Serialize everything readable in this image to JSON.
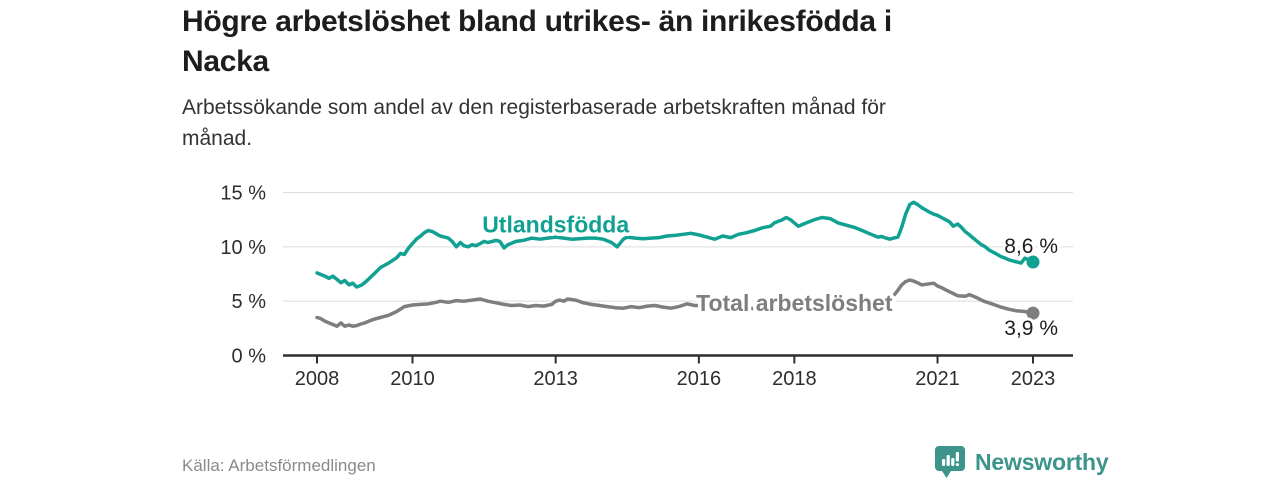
{
  "header": {
    "title_line1": "Högre arbetslöshet bland utrikes- än inrikesfödda i",
    "title_line2": "Nacka",
    "subtitle_line1": "Arbetssökande som andel av den registerbaserade arbetskraften månad för",
    "subtitle_line2": "månad."
  },
  "footer": {
    "source": "Källa: Arbetsförmedlingen",
    "brand_name": "Newsworthy",
    "brand_icon": "speech-bubble-bar-chart-icon"
  },
  "colors": {
    "foreign_born_line": "#11a192",
    "total_line": "#7e7e7e",
    "grid": "#dcdcdc",
    "axis": "#2e2e2e",
    "axis_text": "#2e2e2e",
    "value_label_text": "#1d1d1d",
    "title_text": "#1d1d1d",
    "subtitle_text": "#333333",
    "source_text": "#8a8a8a",
    "brand_teal": "#3c948b"
  },
  "chart_data": {
    "type": "line",
    "title": "Högre arbetslöshet bland utrikes- än inrikesfödda i Nacka",
    "subtitle": "Arbetssökande som andel av den registerbaserade arbetskraften månad för månad.",
    "unit": "%",
    "ylim": [
      0,
      15
    ],
    "x_range": [
      2008,
      2023
    ],
    "grid": "horizontal",
    "legend_position": "inline-labels",
    "y_ticks": [
      {
        "value": 0,
        "label": "0 %"
      },
      {
        "value": 5,
        "label": "5 %"
      },
      {
        "value": 10,
        "label": "10 %"
      },
      {
        "value": 15,
        "label": "15 %"
      }
    ],
    "x_ticks": [
      {
        "value": 2008,
        "label": "2008"
      },
      {
        "value": 2010,
        "label": "2010"
      },
      {
        "value": 2013,
        "label": "2013"
      },
      {
        "value": 2016,
        "label": "2016"
      },
      {
        "value": 2018,
        "label": "2018"
      },
      {
        "value": 2021,
        "label": "2021"
      },
      {
        "value": 2023,
        "label": "2023"
      }
    ],
    "series": [
      {
        "name": "Utlandsfödda",
        "color": "#11a192",
        "end_value": 8.6,
        "end_value_label": "8,6 %",
        "end_label_side": "above",
        "label_pos": [
          2013.0,
          11.3
        ],
        "points": [
          [
            2008.0,
            7.6
          ],
          [
            2008.08,
            7.45
          ],
          [
            2008.17,
            7.3
          ],
          [
            2008.25,
            7.1
          ],
          [
            2008.33,
            7.3
          ],
          [
            2008.42,
            7.0
          ],
          [
            2008.5,
            6.7
          ],
          [
            2008.58,
            6.9
          ],
          [
            2008.67,
            6.5
          ],
          [
            2008.75,
            6.65
          ],
          [
            2008.83,
            6.3
          ],
          [
            2008.92,
            6.45
          ],
          [
            2009.0,
            6.7
          ],
          [
            2009.17,
            7.4
          ],
          [
            2009.33,
            8.1
          ],
          [
            2009.5,
            8.5
          ],
          [
            2009.67,
            9.0
          ],
          [
            2009.75,
            9.4
          ],
          [
            2009.83,
            9.3
          ],
          [
            2009.92,
            9.9
          ],
          [
            2010.0,
            10.3
          ],
          [
            2010.08,
            10.7
          ],
          [
            2010.17,
            11.0
          ],
          [
            2010.25,
            11.3
          ],
          [
            2010.33,
            11.5
          ],
          [
            2010.42,
            11.4
          ],
          [
            2010.5,
            11.2
          ],
          [
            2010.58,
            11.0
          ],
          [
            2010.67,
            10.9
          ],
          [
            2010.75,
            10.8
          ],
          [
            2010.83,
            10.5
          ],
          [
            2010.92,
            10.0
          ],
          [
            2011.0,
            10.4
          ],
          [
            2011.08,
            10.1
          ],
          [
            2011.17,
            10.0
          ],
          [
            2011.25,
            10.2
          ],
          [
            2011.33,
            10.1
          ],
          [
            2011.42,
            10.3
          ],
          [
            2011.5,
            10.5
          ],
          [
            2011.58,
            10.4
          ],
          [
            2011.67,
            10.5
          ],
          [
            2011.75,
            10.6
          ],
          [
            2011.83,
            10.5
          ],
          [
            2011.92,
            9.9
          ],
          [
            2012.0,
            10.2
          ],
          [
            2012.17,
            10.5
          ],
          [
            2012.33,
            10.6
          ],
          [
            2012.5,
            10.8
          ],
          [
            2012.67,
            10.7
          ],
          [
            2012.83,
            10.8
          ],
          [
            2013.0,
            10.9
          ],
          [
            2013.17,
            10.8
          ],
          [
            2013.33,
            10.7
          ],
          [
            2013.5,
            10.75
          ],
          [
            2013.67,
            10.8
          ],
          [
            2013.83,
            10.8
          ],
          [
            2014.0,
            10.7
          ],
          [
            2014.17,
            10.4
          ],
          [
            2014.29,
            10.0
          ],
          [
            2014.42,
            10.7
          ],
          [
            2014.5,
            10.9
          ],
          [
            2014.67,
            10.8
          ],
          [
            2014.83,
            10.75
          ],
          [
            2015.0,
            10.8
          ],
          [
            2015.17,
            10.85
          ],
          [
            2015.33,
            11.0
          ],
          [
            2015.5,
            11.05
          ],
          [
            2015.67,
            11.15
          ],
          [
            2015.83,
            11.25
          ],
          [
            2016.0,
            11.1
          ],
          [
            2016.17,
            10.9
          ],
          [
            2016.33,
            10.7
          ],
          [
            2016.5,
            11.0
          ],
          [
            2016.67,
            10.85
          ],
          [
            2016.83,
            11.15
          ],
          [
            2017.0,
            11.3
          ],
          [
            2017.17,
            11.5
          ],
          [
            2017.33,
            11.75
          ],
          [
            2017.5,
            11.9
          ],
          [
            2017.58,
            12.2
          ],
          [
            2017.75,
            12.5
          ],
          [
            2017.83,
            12.7
          ],
          [
            2017.92,
            12.5
          ],
          [
            2018.08,
            11.9
          ],
          [
            2018.25,
            12.2
          ],
          [
            2018.42,
            12.5
          ],
          [
            2018.58,
            12.7
          ],
          [
            2018.75,
            12.6
          ],
          [
            2018.92,
            12.2
          ],
          [
            2019.08,
            12.0
          ],
          [
            2019.25,
            11.8
          ],
          [
            2019.42,
            11.5
          ],
          [
            2019.58,
            11.2
          ],
          [
            2019.75,
            10.9
          ],
          [
            2019.83,
            10.95
          ],
          [
            2019.92,
            10.8
          ],
          [
            2020.0,
            10.7
          ],
          [
            2020.08,
            10.8
          ],
          [
            2020.17,
            10.9
          ],
          [
            2020.25,
            11.8
          ],
          [
            2020.33,
            13.0
          ],
          [
            2020.42,
            13.9
          ],
          [
            2020.5,
            14.1
          ],
          [
            2020.58,
            13.9
          ],
          [
            2020.67,
            13.6
          ],
          [
            2020.75,
            13.4
          ],
          [
            2020.83,
            13.2
          ],
          [
            2020.92,
            13.0
          ],
          [
            2021.0,
            12.9
          ],
          [
            2021.08,
            12.7
          ],
          [
            2021.17,
            12.5
          ],
          [
            2021.25,
            12.3
          ],
          [
            2021.33,
            11.9
          ],
          [
            2021.42,
            12.1
          ],
          [
            2021.5,
            11.8
          ],
          [
            2021.58,
            11.4
          ],
          [
            2021.67,
            11.1
          ],
          [
            2021.75,
            10.8
          ],
          [
            2021.83,
            10.5
          ],
          [
            2021.92,
            10.2
          ],
          [
            2022.0,
            10.0
          ],
          [
            2022.08,
            9.7
          ],
          [
            2022.17,
            9.5
          ],
          [
            2022.25,
            9.3
          ],
          [
            2022.33,
            9.1
          ],
          [
            2022.42,
            8.95
          ],
          [
            2022.5,
            8.8
          ],
          [
            2022.58,
            8.7
          ],
          [
            2022.67,
            8.6
          ],
          [
            2022.75,
            8.5
          ],
          [
            2022.83,
            8.95
          ],
          [
            2022.92,
            8.8
          ],
          [
            2023.0,
            8.6
          ]
        ]
      },
      {
        "name": "Total arbetslöshet",
        "color": "#7e7e7e",
        "end_value": 3.9,
        "end_value_label": "3,9 %",
        "end_label_side": "below",
        "label_pos": [
          2018.0,
          4.1
        ],
        "points": [
          [
            2008.0,
            3.5
          ],
          [
            2008.08,
            3.4
          ],
          [
            2008.17,
            3.15
          ],
          [
            2008.25,
            3.0
          ],
          [
            2008.33,
            2.85
          ],
          [
            2008.42,
            2.7
          ],
          [
            2008.5,
            3.0
          ],
          [
            2008.58,
            2.7
          ],
          [
            2008.67,
            2.8
          ],
          [
            2008.75,
            2.7
          ],
          [
            2008.83,
            2.75
          ],
          [
            2008.92,
            2.9
          ],
          [
            2009.0,
            3.0
          ],
          [
            2009.17,
            3.3
          ],
          [
            2009.33,
            3.5
          ],
          [
            2009.5,
            3.7
          ],
          [
            2009.67,
            4.05
          ],
          [
            2009.83,
            4.5
          ],
          [
            2010.0,
            4.65
          ],
          [
            2010.17,
            4.7
          ],
          [
            2010.33,
            4.75
          ],
          [
            2010.5,
            4.9
          ],
          [
            2010.58,
            5.0
          ],
          [
            2010.75,
            4.9
          ],
          [
            2010.92,
            5.05
          ],
          [
            2011.08,
            5.0
          ],
          [
            2011.25,
            5.1
          ],
          [
            2011.42,
            5.2
          ],
          [
            2011.58,
            5.0
          ],
          [
            2011.75,
            4.85
          ],
          [
            2011.92,
            4.7
          ],
          [
            2012.08,
            4.6
          ],
          [
            2012.25,
            4.65
          ],
          [
            2012.42,
            4.5
          ],
          [
            2012.58,
            4.6
          ],
          [
            2012.75,
            4.55
          ],
          [
            2012.92,
            4.7
          ],
          [
            2013.0,
            5.0
          ],
          [
            2013.08,
            5.1
          ],
          [
            2013.17,
            5.0
          ],
          [
            2013.25,
            5.2
          ],
          [
            2013.42,
            5.1
          ],
          [
            2013.58,
            4.85
          ],
          [
            2013.75,
            4.7
          ],
          [
            2013.92,
            4.6
          ],
          [
            2014.08,
            4.5
          ],
          [
            2014.25,
            4.4
          ],
          [
            2014.42,
            4.35
          ],
          [
            2014.58,
            4.5
          ],
          [
            2014.75,
            4.4
          ],
          [
            2014.92,
            4.55
          ],
          [
            2015.08,
            4.6
          ],
          [
            2015.25,
            4.45
          ],
          [
            2015.42,
            4.35
          ],
          [
            2015.58,
            4.5
          ],
          [
            2015.75,
            4.75
          ],
          [
            2015.92,
            4.6
          ],
          [
            2016.08,
            4.6
          ],
          [
            2016.25,
            4.5
          ],
          [
            2016.5,
            4.45
          ],
          [
            2016.75,
            4.4
          ],
          [
            2017.0,
            4.35
          ],
          [
            2017.25,
            4.3
          ],
          [
            2017.5,
            4.35
          ],
          [
            2017.75,
            4.4
          ],
          [
            2018.0,
            4.5
          ],
          [
            2018.25,
            4.6
          ],
          [
            2018.5,
            4.7
          ],
          [
            2018.75,
            4.8
          ],
          [
            2019.0,
            4.9
          ],
          [
            2019.25,
            4.85
          ],
          [
            2019.5,
            4.9
          ],
          [
            2019.75,
            4.95
          ],
          [
            2019.92,
            4.8
          ],
          [
            2020.0,
            5.0
          ],
          [
            2020.08,
            5.5
          ],
          [
            2020.17,
            6.0
          ],
          [
            2020.25,
            6.5
          ],
          [
            2020.33,
            6.8
          ],
          [
            2020.42,
            6.95
          ],
          [
            2020.5,
            6.85
          ],
          [
            2020.58,
            6.7
          ],
          [
            2020.67,
            6.5
          ],
          [
            2020.75,
            6.55
          ],
          [
            2020.83,
            6.6
          ],
          [
            2020.92,
            6.65
          ],
          [
            2021.0,
            6.4
          ],
          [
            2021.08,
            6.25
          ],
          [
            2021.17,
            6.05
          ],
          [
            2021.33,
            5.7
          ],
          [
            2021.42,
            5.5
          ],
          [
            2021.58,
            5.45
          ],
          [
            2021.67,
            5.6
          ],
          [
            2021.83,
            5.3
          ],
          [
            2021.92,
            5.1
          ],
          [
            2022.0,
            4.95
          ],
          [
            2022.17,
            4.7
          ],
          [
            2022.33,
            4.45
          ],
          [
            2022.5,
            4.25
          ],
          [
            2022.67,
            4.1
          ],
          [
            2022.83,
            4.05
          ],
          [
            2022.92,
            3.95
          ],
          [
            2023.0,
            3.9
          ]
        ]
      }
    ]
  }
}
